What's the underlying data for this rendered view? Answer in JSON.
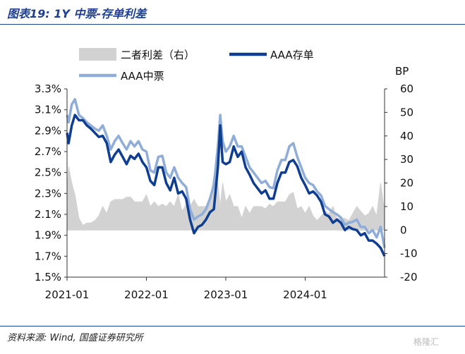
{
  "header": {
    "title": "图表19:  1Y 中票-存单利差"
  },
  "footer": {
    "source": "资料来源:  Wind, 国盛证券研究所",
    "watermark": "格隆汇"
  },
  "colors": {
    "spread": "#d2d2d2",
    "cd": "#0f3d8f",
    "mtn": "#8fadd6",
    "rule": "#1f3f8f"
  },
  "chart_data": {
    "type": "line",
    "x_tick_labels": [
      "2021-01",
      "2022-01",
      "2023-01",
      "2024-01"
    ],
    "x_range": [
      "2021-01",
      "2024-12"
    ],
    "y_left": {
      "ticks": [
        "3.3%",
        "3.1%",
        "2.9%",
        "2.7%",
        "2.5%",
        "2.3%",
        "2.1%",
        "1.9%",
        "1.7%",
        "1.5%"
      ],
      "range": [
        1.5,
        3.3
      ]
    },
    "y_right": {
      "label": "BP",
      "ticks": [
        "60",
        "50",
        "40",
        "30",
        "20",
        "10",
        "0",
        "-10",
        "-20"
      ],
      "range": [
        -20,
        60
      ]
    },
    "legend": [
      "二者利差（右）",
      "AAA存单",
      "AAA中票"
    ],
    "series": [
      {
        "name": "AAA存单",
        "type": "line",
        "axis": "left",
        "x": [
          2021.0,
          2021.02,
          2021.06,
          2021.1,
          2021.15,
          2021.2,
          2021.25,
          2021.3,
          2021.35,
          2021.4,
          2021.45,
          2021.5,
          2021.55,
          2021.6,
          2021.65,
          2021.7,
          2021.75,
          2021.8,
          2021.85,
          2021.9,
          2021.95,
          2022.0,
          2022.05,
          2022.1,
          2022.15,
          2022.2,
          2022.25,
          2022.3,
          2022.35,
          2022.4,
          2022.45,
          2022.5,
          2022.55,
          2022.6,
          2022.65,
          2022.7,
          2022.75,
          2022.8,
          2022.85,
          2022.9,
          2022.93,
          2022.96,
          2023.0,
          2023.05,
          2023.1,
          2023.15,
          2023.2,
          2023.25,
          2023.3,
          2023.35,
          2023.4,
          2023.45,
          2023.5,
          2023.55,
          2023.6,
          2023.65,
          2023.7,
          2023.75,
          2023.8,
          2023.85,
          2023.9,
          2023.95,
          2024.0,
          2024.05,
          2024.1,
          2024.15,
          2024.2,
          2024.25,
          2024.3,
          2024.35,
          2024.4,
          2024.45,
          2024.5,
          2024.55,
          2024.6,
          2024.65,
          2024.7,
          2024.75,
          2024.8,
          2024.85,
          2024.9,
          2024.95,
          2025.0
        ],
        "values": [
          2.88,
          2.78,
          2.95,
          3.05,
          3.0,
          3.0,
          2.95,
          2.92,
          2.88,
          2.84,
          2.85,
          2.78,
          2.6,
          2.67,
          2.72,
          2.65,
          2.58,
          2.66,
          2.63,
          2.68,
          2.6,
          2.55,
          2.42,
          2.38,
          2.55,
          2.55,
          2.4,
          2.33,
          2.45,
          2.3,
          2.32,
          2.25,
          2.05,
          1.92,
          1.98,
          2.0,
          2.05,
          2.12,
          2.15,
          2.55,
          2.95,
          2.6,
          2.58,
          2.6,
          2.75,
          2.65,
          2.7,
          2.55,
          2.48,
          2.4,
          2.35,
          2.3,
          2.33,
          2.25,
          2.25,
          2.4,
          2.5,
          2.5,
          2.6,
          2.62,
          2.56,
          2.45,
          2.38,
          2.3,
          2.32,
          2.28,
          2.22,
          2.1,
          2.08,
          2.02,
          2.05,
          2.02,
          1.95,
          1.98,
          1.96,
          1.95,
          1.9,
          1.92,
          1.85,
          1.85,
          1.82,
          1.78,
          1.7
        ]
      },
      {
        "name": "AAA中票",
        "type": "line",
        "axis": "left",
        "x": [
          2021.0,
          2021.02,
          2021.06,
          2021.1,
          2021.15,
          2021.2,
          2021.25,
          2021.3,
          2021.35,
          2021.4,
          2021.45,
          2021.5,
          2021.55,
          2021.6,
          2021.65,
          2021.7,
          2021.75,
          2021.8,
          2021.85,
          2021.9,
          2021.95,
          2022.0,
          2022.05,
          2022.1,
          2022.15,
          2022.2,
          2022.25,
          2022.3,
          2022.35,
          2022.4,
          2022.45,
          2022.5,
          2022.55,
          2022.6,
          2022.65,
          2022.7,
          2022.75,
          2022.8,
          2022.85,
          2022.9,
          2022.93,
          2022.96,
          2023.0,
          2023.05,
          2023.1,
          2023.15,
          2023.2,
          2023.25,
          2023.3,
          2023.35,
          2023.4,
          2023.45,
          2023.5,
          2023.55,
          2023.6,
          2023.65,
          2023.7,
          2023.75,
          2023.8,
          2023.85,
          2023.9,
          2023.95,
          2024.0,
          2024.05,
          2024.1,
          2024.15,
          2024.2,
          2024.25,
          2024.3,
          2024.35,
          2024.4,
          2024.45,
          2024.5,
          2024.55,
          2024.6,
          2024.65,
          2024.7,
          2024.75,
          2024.8,
          2024.85,
          2024.9,
          2024.95,
          2025.0
        ],
        "values": [
          3.05,
          2.98,
          3.15,
          3.2,
          3.05,
          3.02,
          2.98,
          2.95,
          2.92,
          2.9,
          2.95,
          2.85,
          2.72,
          2.8,
          2.85,
          2.78,
          2.72,
          2.8,
          2.75,
          2.8,
          2.72,
          2.7,
          2.52,
          2.5,
          2.65,
          2.66,
          2.5,
          2.45,
          2.55,
          2.45,
          2.4,
          2.36,
          2.15,
          2.05,
          2.08,
          2.1,
          2.15,
          2.25,
          2.38,
          2.75,
          3.05,
          2.8,
          2.7,
          2.75,
          2.85,
          2.75,
          2.75,
          2.65,
          2.55,
          2.5,
          2.45,
          2.4,
          2.42,
          2.36,
          2.35,
          2.52,
          2.62,
          2.62,
          2.75,
          2.78,
          2.65,
          2.55,
          2.45,
          2.4,
          2.38,
          2.32,
          2.28,
          2.18,
          2.15,
          2.12,
          2.1,
          2.07,
          2.0,
          2.02,
          2.03,
          2.05,
          1.98,
          1.98,
          1.92,
          1.95,
          1.88,
          1.98,
          1.78
        ]
      },
      {
        "name": "二者利差（右）",
        "type": "area",
        "axis": "right",
        "unit": "BP",
        "x": [
          2021.0,
          2021.02,
          2021.06,
          2021.1,
          2021.15,
          2021.2,
          2021.25,
          2021.3,
          2021.35,
          2021.4,
          2021.45,
          2021.5,
          2021.55,
          2021.6,
          2021.65,
          2021.7,
          2021.75,
          2021.8,
          2021.85,
          2021.9,
          2021.95,
          2022.0,
          2022.05,
          2022.1,
          2022.15,
          2022.2,
          2022.25,
          2022.3,
          2022.35,
          2022.4,
          2022.45,
          2022.5,
          2022.55,
          2022.6,
          2022.65,
          2022.7,
          2022.75,
          2022.8,
          2022.85,
          2022.9,
          2022.93,
          2022.96,
          2023.0,
          2023.05,
          2023.1,
          2023.15,
          2023.2,
          2023.25,
          2023.3,
          2023.35,
          2023.4,
          2023.45,
          2023.5,
          2023.55,
          2023.6,
          2023.65,
          2023.7,
          2023.75,
          2023.8,
          2023.85,
          2023.9,
          2023.95,
          2024.0,
          2024.05,
          2024.1,
          2024.15,
          2024.2,
          2024.25,
          2024.3,
          2024.35,
          2024.4,
          2024.45,
          2024.5,
          2024.55,
          2024.6,
          2024.65,
          2024.7,
          2024.75,
          2024.8,
          2024.85,
          2024.9,
          2024.95,
          2025.0
        ],
        "values": [
          17,
          27,
          20,
          15,
          5,
          2,
          3,
          3,
          4,
          6,
          10,
          7,
          12,
          13,
          13,
          13,
          14,
          14,
          12,
          12,
          12,
          15,
          10,
          12,
          10,
          11,
          10,
          12,
          10,
          15,
          8,
          11,
          10,
          13,
          10,
          10,
          10,
          13,
          23,
          20,
          10,
          20,
          12,
          15,
          10,
          10,
          5,
          10,
          7,
          10,
          10,
          10,
          9,
          11,
          10,
          12,
          12,
          12,
          15,
          16,
          9,
          10,
          7,
          10,
          6,
          4,
          6,
          8,
          7,
          10,
          5,
          5,
          5,
          4,
          7,
          10,
          8,
          6,
          7,
          10,
          6,
          20,
          8
        ]
      }
    ]
  }
}
